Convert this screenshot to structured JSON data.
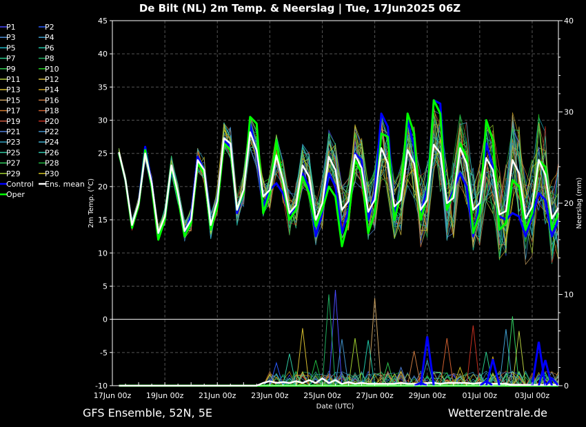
{
  "chart_data": {
    "type": "line",
    "title": "De Bilt  (NL)  2m Temp. & Neerslag | Tue, 17Jun2025 06Z",
    "xlabel": "Date (UTC)",
    "ylabel": "2m Temp. (°C)",
    "y2label": "Neerslag (mm)",
    "ylim": [
      -10,
      45
    ],
    "y2lim": [
      0,
      40
    ],
    "y_ticks": [
      45,
      40,
      35,
      30,
      25,
      20,
      15,
      10,
      5,
      0,
      -5,
      -10
    ],
    "y2_ticks": [
      40,
      30,
      20,
      10,
      0
    ],
    "x_ticks": [
      "17Jun 00z",
      "19Jun 00z",
      "21Jun 00z",
      "23Jun 00z",
      "25Jun 00z",
      "27Jun 00z",
      "29Jun 00z",
      "01Jul 00z",
      "03Jul 00z"
    ],
    "xlim_hours": [
      0,
      408
    ],
    "x_hours": [
      6,
      12,
      18,
      24,
      30,
      36,
      42,
      48,
      54,
      60,
      66,
      72,
      78,
      84,
      90,
      96,
      102,
      108,
      114,
      120,
      126,
      132,
      138,
      144,
      150,
      156,
      162,
      168,
      174,
      180,
      186,
      192,
      198,
      204,
      210,
      216,
      222,
      228,
      234,
      240,
      246,
      252,
      258,
      264,
      270,
      276,
      282,
      288,
      294,
      300,
      306,
      312,
      318,
      324,
      330,
      336,
      342,
      348,
      354,
      360,
      366,
      372,
      378,
      384,
      390,
      396,
      402,
      408
    ],
    "grid": true,
    "legend_position": "left-outside",
    "series": [
      {
        "name": "Ens. mean",
        "color": "#ffffff",
        "temp": [
          25.2,
          21.0,
          14.2,
          17.5,
          25.0,
          20.5,
          13.0,
          15.5,
          23.2,
          19.0,
          13.3,
          15.0,
          24.0,
          22.5,
          14.2,
          17.8,
          27.3,
          26.5,
          16.5,
          19.5,
          28.2,
          25.5,
          18.5,
          19.5,
          24.7,
          21.0,
          16.0,
          17.2,
          23.2,
          21.5,
          15.0,
          17.5,
          24.5,
          22.5,
          16.5,
          17.8,
          24.8,
          22.8,
          16.2,
          18.0,
          25.8,
          23.5,
          17.0,
          18.0,
          25.5,
          23.5,
          16.5,
          18.0,
          26.3,
          25.0,
          17.5,
          18.3,
          25.8,
          23.5,
          16.5,
          17.5,
          24.3,
          22.5,
          15.8,
          16.3,
          24.0,
          22.0,
          15.2,
          17.0,
          24.0,
          21.8,
          15.2,
          16.8
        ],
        "precip": [
          0,
          0,
          0,
          0,
          0,
          0,
          0,
          0,
          0,
          0,
          0,
          0,
          0,
          0,
          0,
          0,
          0,
          0,
          0,
          0,
          0,
          0,
          0.3,
          0.5,
          0.3,
          0.4,
          0.3,
          0.5,
          0.3,
          0.6,
          0.3,
          0.8,
          0.3,
          0.6,
          0.2,
          0.4,
          0.2,
          0.3,
          0.2,
          0.2,
          0.2,
          0.2,
          0.2,
          0.3,
          0.2,
          0.2,
          0.2,
          0.3,
          0.3,
          0.2,
          0.3,
          0.3,
          0.3,
          0.3,
          0.2,
          0.3,
          0.2,
          0.2,
          0.2,
          0.2,
          0.1,
          0.1,
          0.1,
          0.1,
          0.1,
          0.1,
          0.1,
          0.1
        ]
      },
      {
        "name": "Control",
        "color": "#0000ff",
        "temp": [
          25.0,
          21.0,
          14.0,
          17.5,
          26.0,
          20.5,
          12.5,
          15.0,
          22.5,
          19.0,
          13.0,
          15.5,
          24.5,
          22.5,
          13.5,
          18.0,
          27.0,
          26.0,
          16.0,
          19.0,
          29.5,
          25.0,
          17.0,
          19.5,
          20.5,
          19.0,
          15.8,
          17.0,
          22.0,
          20.0,
          12.5,
          16.0,
          22.0,
          20.0,
          13.0,
          16.5,
          25.0,
          24.0,
          15.0,
          19.0,
          31.0,
          29.0,
          16.0,
          19.0,
          30.0,
          26.0,
          16.0,
          19.5,
          33.0,
          32.5,
          17.0,
          19.5,
          22.0,
          20.0,
          12.5,
          17.5,
          26.5,
          23.0,
          15.5,
          15.0,
          16.0,
          15.5,
          12.5,
          15.5,
          19.0,
          18.0,
          12.5,
          15.0
        ],
        "precip": [
          0,
          0,
          0,
          0,
          0,
          0,
          0,
          0,
          0,
          0,
          0,
          0,
          0,
          0,
          0,
          0,
          0,
          0,
          0,
          0,
          0,
          0,
          0,
          0,
          0,
          0,
          0,
          0,
          0,
          0,
          0,
          0,
          0,
          0,
          0,
          0,
          0,
          0,
          0,
          0,
          0,
          0,
          0,
          0,
          0,
          0,
          0,
          0,
          0,
          0,
          0,
          0,
          0,
          0,
          0,
          0,
          0,
          0,
          0,
          0,
          0,
          0,
          0,
          0,
          0,
          0,
          0,
          0
        ]
      },
      {
        "name": "Oper",
        "color": "#00ff00",
        "temp": [
          25.0,
          21.0,
          13.8,
          17.2,
          25.5,
          20.0,
          12.0,
          15.0,
          23.0,
          18.5,
          12.5,
          14.5,
          23.5,
          22.0,
          13.5,
          17.0,
          26.5,
          25.5,
          16.5,
          19.0,
          30.5,
          29.5,
          16.0,
          19.0,
          27.0,
          20.5,
          15.0,
          16.5,
          21.5,
          19.0,
          14.0,
          16.5,
          20.0,
          18.5,
          11.0,
          15.0,
          24.0,
          22.0,
          13.0,
          16.0,
          28.0,
          27.5,
          15.0,
          19.0,
          31.0,
          28.0,
          15.0,
          18.5,
          33.0,
          31.0,
          16.5,
          19.0,
          26.5,
          24.5,
          13.0,
          16.0,
          30.0,
          27.0,
          13.5,
          14.5,
          21.0,
          20.0,
          13.5,
          16.0,
          24.0,
          23.0,
          13.5,
          16.0
        ],
        "precip": [
          0,
          0,
          0,
          0,
          0,
          0,
          0,
          0,
          0,
          0,
          0,
          0,
          0,
          0,
          0,
          0,
          0,
          0,
          0,
          0,
          0,
          0,
          0,
          0,
          0,
          0,
          0,
          0,
          0,
          0,
          0,
          0,
          0,
          0,
          0,
          0,
          0,
          0,
          0,
          0,
          0,
          0,
          0,
          0,
          0,
          0,
          0,
          0,
          0,
          0,
          0,
          0,
          0,
          0,
          0,
          0,
          0,
          0,
          0,
          0,
          0,
          0,
          0,
          0,
          0,
          0,
          0,
          0
        ]
      }
    ],
    "members": [
      {
        "name": "P1",
        "color": "#4a4aff"
      },
      {
        "name": "P2",
        "color": "#2a5cff"
      },
      {
        "name": "P3",
        "color": "#4f8fd8"
      },
      {
        "name": "P4",
        "color": "#3fa0d0"
      },
      {
        "name": "P5",
        "color": "#1fb8c8"
      },
      {
        "name": "P6",
        "color": "#20c8a8"
      },
      {
        "name": "P7",
        "color": "#28c88a"
      },
      {
        "name": "P8",
        "color": "#20b060"
      },
      {
        "name": "P9",
        "color": "#30c850"
      },
      {
        "name": "P10",
        "color": "#20d020"
      },
      {
        "name": "P11",
        "color": "#b8d040"
      },
      {
        "name": "P12",
        "color": "#d8c040"
      },
      {
        "name": "P13",
        "color": "#d8c030"
      },
      {
        "name": "P14",
        "color": "#c8a020"
      },
      {
        "name": "P15",
        "color": "#c8a060"
      },
      {
        "name": "P16",
        "color": "#c87840"
      },
      {
        "name": "P17",
        "color": "#d07a30"
      },
      {
        "name": "P18",
        "color": "#d06030"
      },
      {
        "name": "P19",
        "color": "#d05a40"
      },
      {
        "name": "P20",
        "color": "#c83020"
      },
      {
        "name": "P21",
        "color": "#4f7fd8"
      },
      {
        "name": "P22",
        "color": "#3f90c8"
      },
      {
        "name": "P23",
        "color": "#30a0c0"
      },
      {
        "name": "P24",
        "color": "#40b0d0"
      },
      {
        "name": "P25",
        "color": "#30c8a0"
      },
      {
        "name": "P26",
        "color": "#30c8b0"
      },
      {
        "name": "P27",
        "color": "#30d060"
      },
      {
        "name": "P28",
        "color": "#20b840"
      },
      {
        "name": "P29",
        "color": "#a0d030"
      },
      {
        "name": "P30",
        "color": "#d0c020"
      }
    ],
    "member_precip_peaks": [
      {
        "hour": 204,
        "value": 10.5
      },
      {
        "hour": 198,
        "value": 10.0
      },
      {
        "hour": 240,
        "value": 9.6
      },
      {
        "hour": 210,
        "value": 5.1
      },
      {
        "hour": 222,
        "value": 5.2
      },
      {
        "hour": 234,
        "value": 5.0
      },
      {
        "hour": 174,
        "value": 6.3
      },
      {
        "hour": 330,
        "value": 6.6
      },
      {
        "hour": 366,
        "value": 7.6
      },
      {
        "hour": 360,
        "value": 6.2
      },
      {
        "hour": 372,
        "value": 6.0
      },
      {
        "hour": 306,
        "value": 5.2
      },
      {
        "hour": 162,
        "value": 3.5
      },
      {
        "hour": 150,
        "value": 2.5
      },
      {
        "hour": 252,
        "value": 2.5
      },
      {
        "hour": 276,
        "value": 3.8
      },
      {
        "hour": 288,
        "value": 2.8
      },
      {
        "hour": 318,
        "value": 2.0
      },
      {
        "hour": 342,
        "value": 3.7
      },
      {
        "hour": 348,
        "value": 3.2
      },
      {
        "hour": 264,
        "value": 2.0
      },
      {
        "hour": 186,
        "value": 2.8
      }
    ]
  },
  "footer": {
    "left": "GFS Ensemble, 52N, 5E",
    "right": "Wetterzentrale.de"
  }
}
